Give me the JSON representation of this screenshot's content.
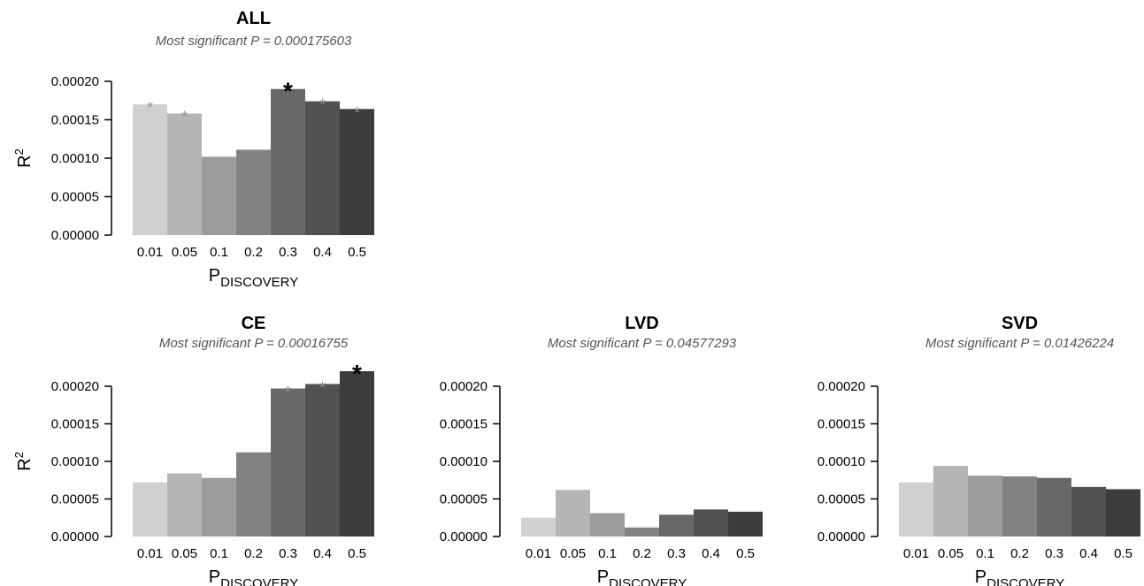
{
  "chart_data": [
    {
      "type": "bar",
      "title": "ALL",
      "subtitle": "Most significant P = 0.000175603",
      "ylabel": "R",
      "ylabel_sup": "2",
      "xlabel": "P",
      "xlabel_sub": "DISCOVERY",
      "categories": [
        "0.01",
        "0.05",
        "0.1",
        "0.2",
        "0.3",
        "0.4",
        "0.5"
      ],
      "values": [
        0.00017,
        0.000158,
        0.000102,
        0.000111,
        0.00019,
        0.000174,
        0.000164
      ],
      "significance": [
        "gray",
        "gray",
        "",
        "",
        "black",
        "gray",
        "gray"
      ],
      "yticks": [
        "0.00000",
        "0.00005",
        "0.00010",
        "0.00015",
        "0.00020"
      ],
      "ylim": [
        0,
        0.0002
      ]
    },
    {
      "type": "bar",
      "title": "CE",
      "subtitle": "Most significant P = 0.00016755",
      "ylabel": "R",
      "ylabel_sup": "2",
      "xlabel": "P",
      "xlabel_sub": "DISCOVERY",
      "categories": [
        "0.01",
        "0.05",
        "0.1",
        "0.2",
        "0.3",
        "0.4",
        "0.5"
      ],
      "values": [
        7.2e-05,
        8.4e-05,
        7.8e-05,
        0.000112,
        0.000197,
        0.000203,
        0.00022
      ],
      "significance": [
        "",
        "",
        "",
        "",
        "gray",
        "gray",
        "black"
      ],
      "yticks": [
        "0.00000",
        "0.00005",
        "0.00010",
        "0.00015",
        "0.00020"
      ],
      "ylim": [
        0,
        0.0002
      ]
    },
    {
      "type": "bar",
      "title": "LVD",
      "subtitle": "Most significant P = 0.04577293",
      "ylabel": "",
      "ylabel_sup": "",
      "xlabel": "P",
      "xlabel_sub": "DISCOVERY",
      "categories": [
        "0.01",
        "0.05",
        "0.1",
        "0.2",
        "0.3",
        "0.4",
        "0.5"
      ],
      "values": [
        2.5e-05,
        6.2e-05,
        3.1e-05,
        1.2e-05,
        2.9e-05,
        3.6e-05,
        3.3e-05
      ],
      "significance": [
        "",
        "",
        "",
        "",
        "",
        "",
        ""
      ],
      "yticks": [
        "0.00000",
        "0.00005",
        "0.00010",
        "0.00015",
        "0.00020"
      ],
      "ylim": [
        0,
        0.0002
      ]
    },
    {
      "type": "bar",
      "title": "SVD",
      "subtitle": "Most significant P = 0.01426224",
      "ylabel": "",
      "ylabel_sup": "",
      "xlabel": "P",
      "xlabel_sub": "DISCOVERY",
      "categories": [
        "0.01",
        "0.05",
        "0.1",
        "0.2",
        "0.3",
        "0.4",
        "0.5"
      ],
      "values": [
        7.2e-05,
        9.4e-05,
        8.1e-05,
        8e-05,
        7.8e-05,
        6.6e-05,
        6.3e-05
      ],
      "significance": [
        "",
        "",
        "",
        "",
        "",
        "",
        ""
      ],
      "yticks": [
        "0.00000",
        "0.00005",
        "0.00010",
        "0.00015",
        "0.00020"
      ],
      "ylim": [
        0,
        0.0002
      ]
    }
  ],
  "colors": {
    "bars": [
      "#d0d0d0",
      "#b5b5b5",
      "#9c9c9c",
      "#828282",
      "#686868",
      "#515151",
      "#3c3c3c"
    ],
    "axis": "#000000",
    "subtitle": "#555555",
    "star_gray": "#9a9a9a",
    "star_black": "#000000"
  },
  "markers": {
    "star": "*"
  }
}
